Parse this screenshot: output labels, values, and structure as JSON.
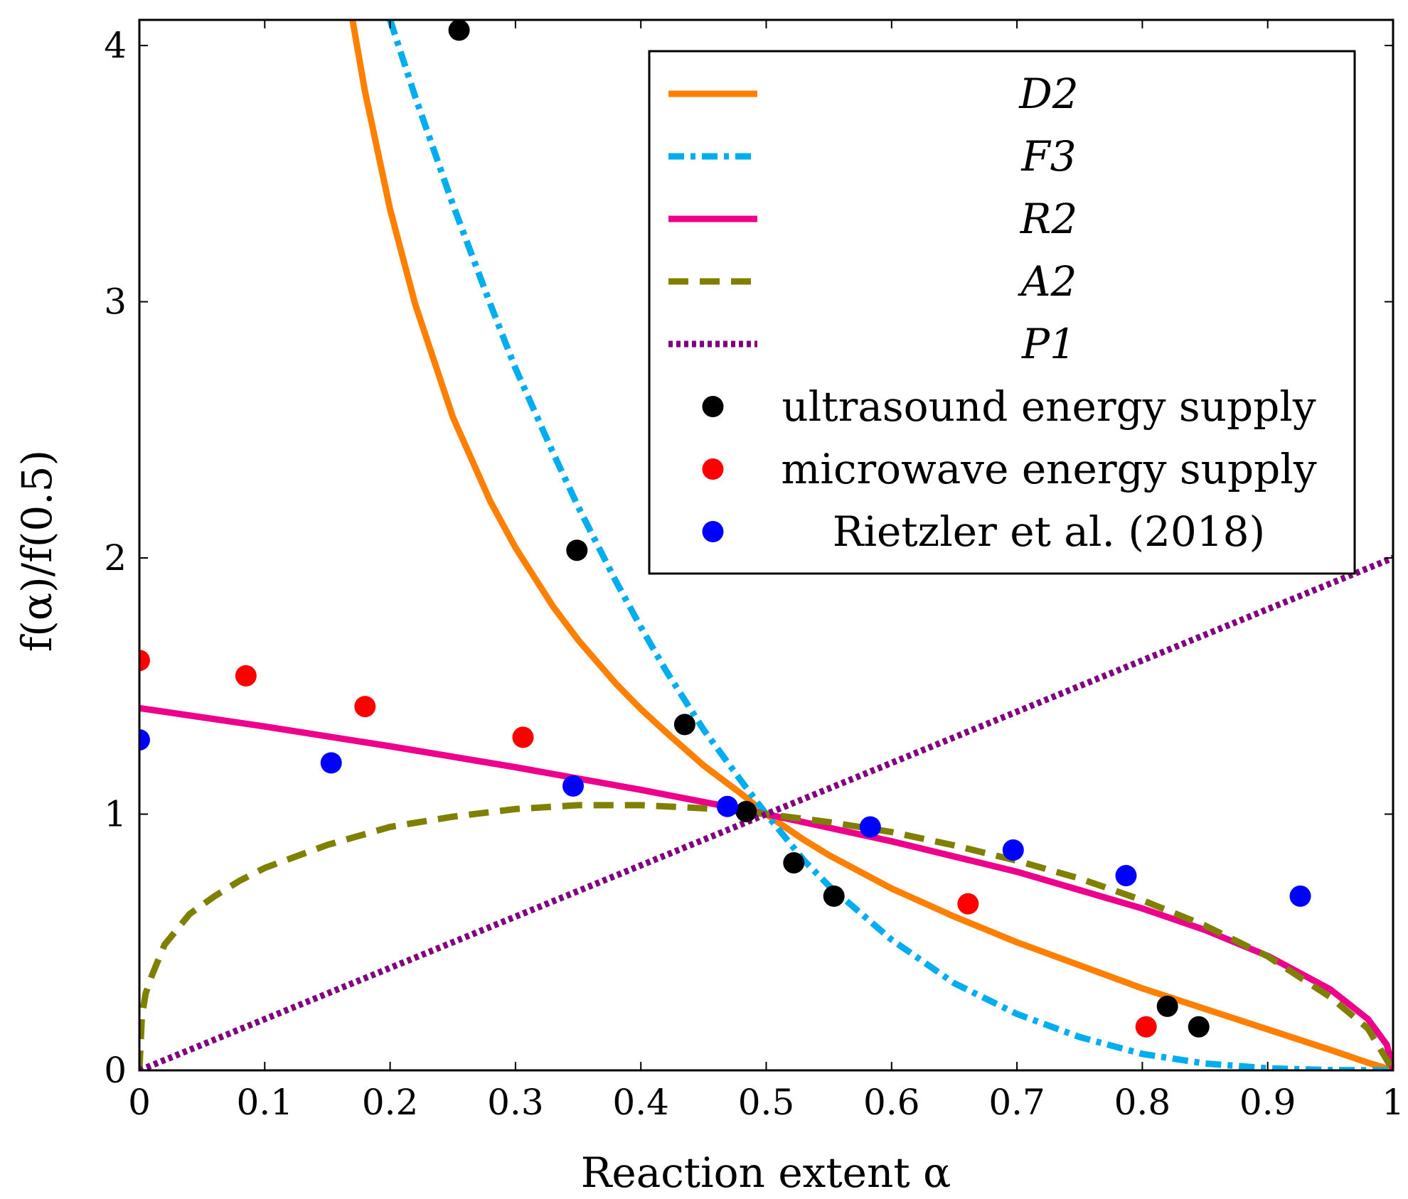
{
  "chart_data": {
    "type": "line",
    "xlabel": "Reaction extent α",
    "ylabel": "f(α)/f(0.5)",
    "xlim": [
      0,
      1
    ],
    "ylim": [
      0,
      4.1
    ],
    "x_ticks": [
      0,
      0.1,
      0.2,
      0.3,
      0.4,
      0.5,
      0.6,
      0.7,
      0.8,
      0.9,
      1
    ],
    "x_tick_labels": [
      "0",
      "0.1",
      "0.2",
      "0.3",
      "0.4",
      "0.5",
      "0.6",
      "0.7",
      "0.8",
      "0.9",
      "1"
    ],
    "y_ticks": [
      0,
      1,
      2,
      3,
      4
    ],
    "y_tick_labels": [
      "0",
      "1",
      "2",
      "3",
      "4"
    ],
    "grid": false,
    "legend_position": "top-right",
    "series": [
      {
        "name": "D2",
        "kind": "line",
        "color": "#FF8000",
        "dash": "solid",
        "x": [
          0.17,
          0.18,
          0.2,
          0.22,
          0.25,
          0.28,
          0.3,
          0.33,
          0.35,
          0.38,
          0.4,
          0.42,
          0.45,
          0.48,
          0.5,
          0.53,
          0.55,
          0.6,
          0.65,
          0.7,
          0.75,
          0.8,
          0.85,
          0.9,
          0.95,
          0.98,
          1.0
        ],
        "y": [
          4.1,
          3.82,
          3.36,
          2.99,
          2.55,
          2.22,
          2.04,
          1.81,
          1.68,
          1.51,
          1.41,
          1.32,
          1.19,
          1.08,
          1.0,
          0.9,
          0.84,
          0.71,
          0.6,
          0.5,
          0.41,
          0.32,
          0.24,
          0.16,
          0.08,
          0.03,
          0.0
        ]
      },
      {
        "name": "F3",
        "kind": "line",
        "color": "#00AEEF",
        "dash": "dashdot",
        "x": [
          0.2,
          0.22,
          0.25,
          0.28,
          0.3,
          0.33,
          0.35,
          0.38,
          0.4,
          0.42,
          0.45,
          0.48,
          0.5,
          0.53,
          0.55,
          0.6,
          0.65,
          0.7,
          0.75,
          0.8,
          0.85,
          0.9,
          0.95,
          1.0
        ],
        "y": [
          4.1,
          3.8,
          3.38,
          2.99,
          2.74,
          2.41,
          2.2,
          1.91,
          1.73,
          1.56,
          1.33,
          1.13,
          1.0,
          0.82,
          0.72,
          0.51,
          0.34,
          0.22,
          0.13,
          0.064,
          0.027,
          0.008,
          0.001,
          0.0
        ]
      },
      {
        "name": "R2",
        "kind": "line",
        "color": "#EC008C",
        "dash": "solid",
        "x": [
          0,
          0.1,
          0.2,
          0.3,
          0.4,
          0.5,
          0.6,
          0.7,
          0.8,
          0.85,
          0.9,
          0.95,
          0.98,
          0.995,
          1.0
        ],
        "y": [
          1.414,
          1.342,
          1.265,
          1.183,
          1.095,
          1.0,
          0.894,
          0.775,
          0.632,
          0.548,
          0.447,
          0.316,
          0.2,
          0.1,
          0.0
        ]
      },
      {
        "name": "A2",
        "kind": "line",
        "color": "#808000",
        "dash": "dashed",
        "x": [
          0.0,
          0.002,
          0.005,
          0.01,
          0.02,
          0.04,
          0.06,
          0.08,
          0.1,
          0.15,
          0.2,
          0.25,
          0.3,
          0.35,
          0.4,
          0.45,
          0.5,
          0.55,
          0.6,
          0.65,
          0.7,
          0.75,
          0.8,
          0.85,
          0.9,
          0.95,
          0.98,
          1.0
        ],
        "y": [
          0.0,
          0.21,
          0.3,
          0.37,
          0.49,
          0.61,
          0.68,
          0.74,
          0.79,
          0.88,
          0.95,
          0.99,
          1.02,
          1.035,
          1.035,
          1.023,
          1.0,
          0.969,
          0.93,
          0.878,
          0.818,
          0.749,
          0.664,
          0.565,
          0.445,
          0.286,
          0.163,
          0.0
        ]
      },
      {
        "name": "P1",
        "kind": "line",
        "color": "#800080",
        "dash": "dotted",
        "x": [
          0,
          1
        ],
        "y": [
          0,
          2
        ]
      },
      {
        "name": "ultrasound energy supply",
        "kind": "scatter",
        "color": "#000000",
        "x": [
          0.255,
          0.349,
          0.435,
          0.484,
          0.522,
          0.554,
          0.82,
          0.845
        ],
        "y": [
          4.06,
          2.03,
          1.35,
          1.01,
          0.81,
          0.68,
          0.25,
          0.17
        ]
      },
      {
        "name": "microwave energy supply",
        "kind": "scatter",
        "color": "#FF0000",
        "x": [
          0.0,
          0.085,
          0.18,
          0.306,
          0.661,
          0.803
        ],
        "y": [
          1.6,
          1.54,
          1.42,
          1.3,
          0.65,
          0.17
        ]
      },
      {
        "name": "Rietzler et al. (2018)",
        "kind": "scatter",
        "color": "#0000FF",
        "x": [
          0.0,
          0.153,
          0.346,
          0.469,
          0.583,
          0.697,
          0.787,
          0.926
        ],
        "y": [
          1.29,
          1.2,
          1.11,
          1.03,
          0.95,
          0.86,
          0.76,
          0.68
        ]
      }
    ]
  }
}
